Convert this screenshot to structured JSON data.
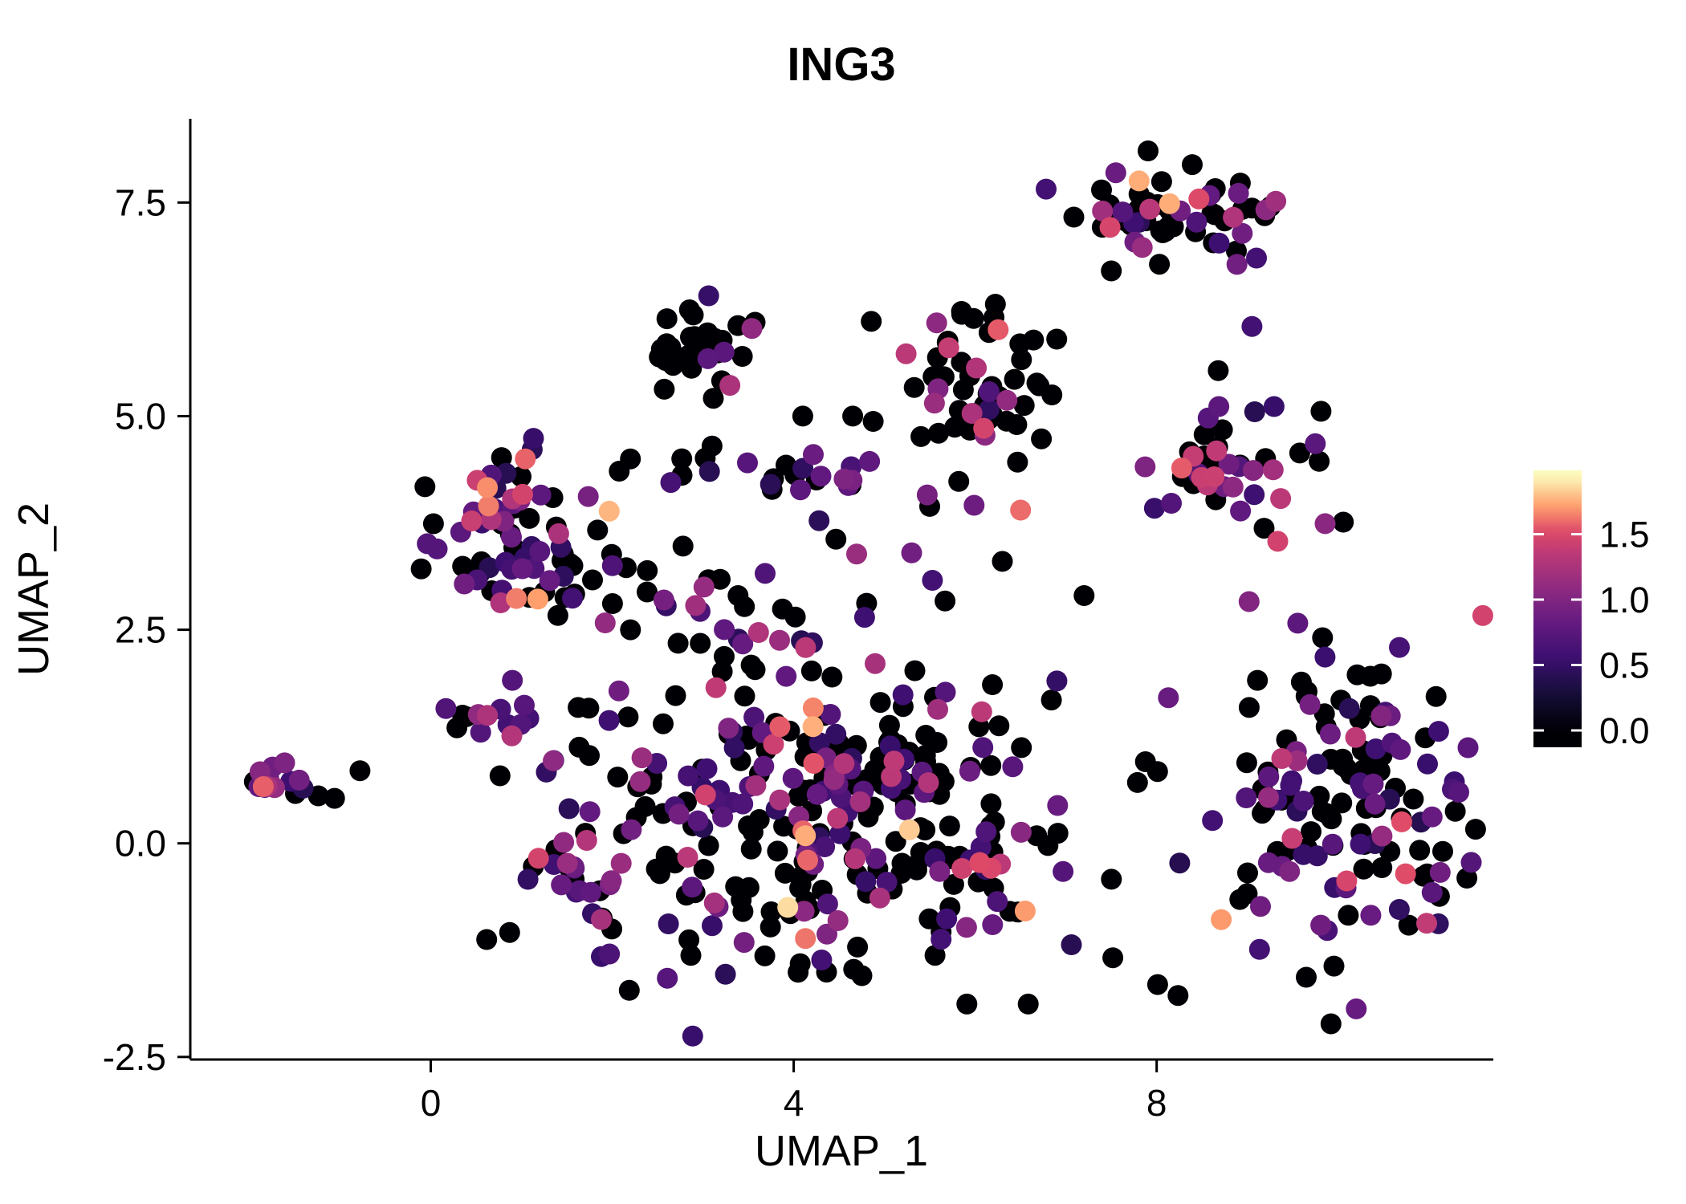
{
  "title": "ING3",
  "chart_data": {
    "type": "scatter",
    "title": "ING3",
    "xlabel": "UMAP_1",
    "ylabel": "UMAP_2",
    "x_range": [
      -2.65,
      11.71
    ],
    "y_range": [
      -2.53,
      8.48
    ],
    "grid": false,
    "x_ticks": [
      {
        "v": 0,
        "label": "0"
      },
      {
        "v": 4,
        "label": "4"
      },
      {
        "v": 8,
        "label": "8"
      }
    ],
    "y_ticks": [
      {
        "v": -2.5,
        "label": "-2.5"
      },
      {
        "v": 0,
        "label": "0.0"
      },
      {
        "v": 2.5,
        "label": "2.5"
      },
      {
        "v": 5,
        "label": "5.0"
      },
      {
        "v": 7.5,
        "label": "7.5"
      }
    ],
    "legend": {
      "position": "right",
      "vmin": 0,
      "vmax": 1.95,
      "ticks": [
        {
          "v": 0,
          "label": "0.0"
        },
        {
          "v": 0.5,
          "label": "0.5"
        },
        {
          "v": 1,
          "label": "1.0"
        },
        {
          "v": 1.5,
          "label": "1.5"
        }
      ]
    },
    "colormap": {
      "name": "magma",
      "stops": [
        [
          0,
          "#000004"
        ],
        [
          0.14,
          "#140E36"
        ],
        [
          0.28,
          "#3B0F70"
        ],
        [
          0.42,
          "#641A80"
        ],
        [
          0.55,
          "#8C2981"
        ],
        [
          0.68,
          "#B73779"
        ],
        [
          0.78,
          "#DE4968"
        ],
        [
          0.88,
          "#FE9F6D"
        ],
        [
          1,
          "#FCFDBF"
        ]
      ]
    },
    "seed": 7,
    "clusters": [
      {
        "name": "top-right",
        "cx": 8.1,
        "cy": 7.45,
        "sdx": 0.6,
        "sdy": 0.27,
        "n": 60,
        "values": [
          [
            0.6,
            0,
            0
          ],
          [
            0.18,
            0.4,
            0.9
          ],
          [
            0.16,
            0.9,
            1.5
          ],
          [
            0.06,
            1.5,
            1.8
          ]
        ]
      },
      {
        "name": "right-upper-mid",
        "cx": 8.8,
        "cy": 4.4,
        "sdx": 0.5,
        "sdy": 0.4,
        "n": 45,
        "values": [
          [
            0.45,
            0,
            0
          ],
          [
            0.3,
            0.4,
            0.9
          ],
          [
            0.2,
            0.9,
            1.5
          ],
          [
            0.05,
            1.5,
            1.8
          ]
        ]
      },
      {
        "name": "far-right",
        "cx": 10.2,
        "cy": 0.55,
        "sdx": 0.8,
        "sdy": 0.95,
        "n": 140,
        "values": [
          [
            0.52,
            0,
            0
          ],
          [
            0.28,
            0.4,
            0.9
          ],
          [
            0.15,
            0.9,
            1.4
          ],
          [
            0.05,
            1.4,
            1.8
          ]
        ]
      },
      {
        "name": "far-left",
        "cx": -1.62,
        "cy": 0.68,
        "sdx": 0.2,
        "sdy": 0.1,
        "n": 16,
        "values": [
          [
            0.2,
            0,
            0
          ],
          [
            0.45,
            0.4,
            0.9
          ],
          [
            0.25,
            0.9,
            1.4
          ],
          [
            0.1,
            1.4,
            1.7
          ]
        ]
      },
      {
        "name": "upper-left-small",
        "cx": 2.9,
        "cy": 5.8,
        "sdx": 0.32,
        "sdy": 0.26,
        "n": 34,
        "values": [
          [
            0.82,
            0,
            0
          ],
          [
            0.09,
            0.5,
            0.9
          ],
          [
            0.09,
            0.9,
            1.3
          ]
        ]
      },
      {
        "name": "upper-center",
        "cx": 6.0,
        "cy": 5.3,
        "sdx": 0.55,
        "sdy": 0.5,
        "n": 60,
        "values": [
          [
            0.72,
            0,
            0
          ],
          [
            0.1,
            0.4,
            0.9
          ],
          [
            0.12,
            0.9,
            1.5
          ],
          [
            0.06,
            1.5,
            1.9
          ]
        ]
      },
      {
        "name": "left",
        "cx": 1.05,
        "cy": 3.7,
        "sdx": 0.5,
        "sdy": 0.55,
        "n": 80,
        "values": [
          [
            0.42,
            0,
            0
          ],
          [
            0.3,
            0.4,
            0.9
          ],
          [
            0.2,
            0.9,
            1.5
          ],
          [
            0.08,
            1.5,
            1.8
          ]
        ]
      },
      {
        "name": "central",
        "cx": 4.3,
        "cy": 0.35,
        "sdx": 1.45,
        "sdy": 1.05,
        "n": 340,
        "values": [
          [
            0.58,
            0,
            0
          ],
          [
            0.25,
            0.4,
            0.9
          ],
          [
            0.12,
            0.9,
            1.4
          ],
          [
            0.05,
            1.4,
            1.9
          ]
        ]
      },
      {
        "name": "bridge-row",
        "cx": 4.5,
        "cy": 4.3,
        "sdx": 0.55,
        "sdy": 0.15,
        "n": 14,
        "values": [
          [
            0.4,
            0,
            0
          ],
          [
            0.35,
            0.4,
            0.9
          ],
          [
            0.25,
            0.9,
            1.3
          ]
        ]
      },
      {
        "name": "mid-sparse",
        "cx": 3.3,
        "cy": 2.9,
        "sdx": 0.7,
        "sdy": 0.45,
        "n": 26,
        "values": [
          [
            0.6,
            0,
            0
          ],
          [
            0.25,
            0.4,
            0.9
          ],
          [
            0.15,
            0.9,
            1.3
          ]
        ]
      },
      {
        "name": "left-mid-small",
        "cx": 0.8,
        "cy": 1.45,
        "sdx": 0.3,
        "sdy": 0.2,
        "n": 12,
        "values": [
          [
            0.55,
            0,
            0
          ],
          [
            0.3,
            0.4,
            0.9
          ],
          [
            0.15,
            0.9,
            1.4
          ]
        ]
      },
      {
        "name": "left-lower-small",
        "cx": 1.6,
        "cy": -0.2,
        "sdx": 0.25,
        "sdy": 0.3,
        "n": 18,
        "values": [
          [
            0.35,
            0,
            0
          ],
          [
            0.4,
            0.4,
            0.9
          ],
          [
            0.2,
            0.9,
            1.4
          ],
          [
            0.05,
            1.4,
            1.7
          ]
        ]
      },
      {
        "name": "row-mid-upper",
        "cx": 3.1,
        "cy": 4.4,
        "sdx": 0.55,
        "sdy": 0.18,
        "n": 10,
        "values": [
          [
            0.8,
            0,
            0
          ],
          [
            0.2,
            0.4,
            0.9
          ]
        ]
      }
    ],
    "points": [
      [
        -0.78,
        0.85,
        0
      ],
      [
        7.5,
        6.7,
        0
      ],
      [
        9.1,
        6.85,
        0.6
      ],
      [
        9.05,
        6.05,
        0.6
      ],
      [
        3.1,
        4.65,
        0
      ],
      [
        4.1,
        5.0,
        0
      ],
      [
        4.65,
        5.0,
        0
      ],
      [
        0.35,
        1.5,
        0
      ],
      [
        0.55,
        1.3,
        0.7
      ],
      [
        2.2,
        4.5,
        0
      ],
      [
        6.3,
        3.3,
        0
      ],
      [
        7.2,
        2.9,
        0
      ],
      [
        6.9,
        1.9,
        0.5
      ],
      [
        5.3,
        3.4,
        0.9
      ],
      [
        6.5,
        3.9,
        1.6
      ]
    ]
  }
}
